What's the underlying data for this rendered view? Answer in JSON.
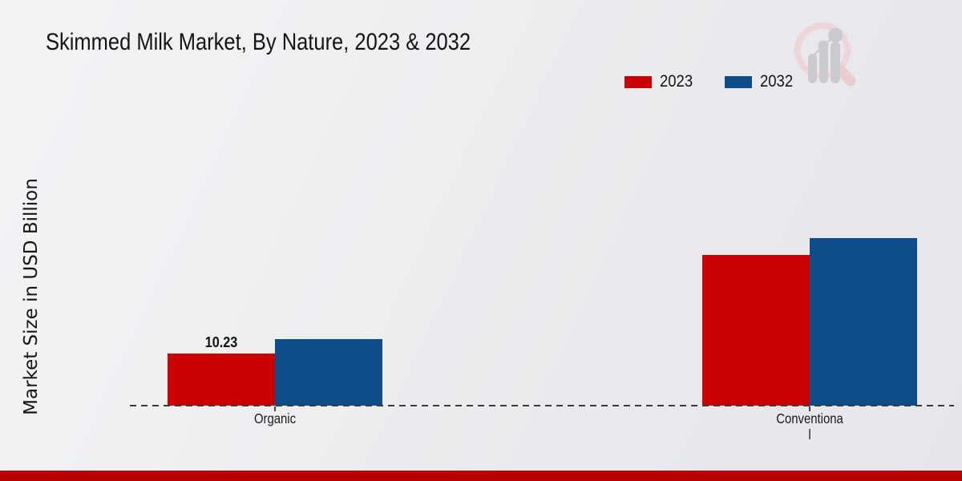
{
  "page": {
    "background_start": "#f4f4f5",
    "background_end": "#e7e7e9",
    "footer_bar_color": "#c00000",
    "logo_name": "magnifier-bar-chart-watermark",
    "logo_ring_color": "#edd5d8",
    "logo_bar_color": "#cbcbcf"
  },
  "chart_data": {
    "type": "bar",
    "title": "Skimmed Milk Market, By Nature, 2023 & 2032",
    "ylabel": "Market Size in USD Billion",
    "xlabel": "",
    "categories": [
      "Organic",
      "Conventional"
    ],
    "category_display_lines": [
      [
        "Organic"
      ],
      [
        "Conventiona",
        "l"
      ]
    ],
    "series": [
      {
        "name": "2023",
        "color": "#c80202",
        "values": [
          10.23,
          29.6
        ]
      },
      {
        "name": "2032",
        "color": "#0e4c8a",
        "values": [
          13.0,
          32.9
        ]
      }
    ],
    "data_labels": [
      {
        "series": "2023",
        "category": "Organic",
        "text": "10.23"
      }
    ],
    "axis": {
      "baseline_style": "dashed",
      "baseline_color": "#3b3b3b",
      "gridlines": false,
      "y_tick_labels_visible": false
    },
    "legend": {
      "position": "top-right",
      "entries": [
        "2023",
        "2032"
      ]
    }
  }
}
